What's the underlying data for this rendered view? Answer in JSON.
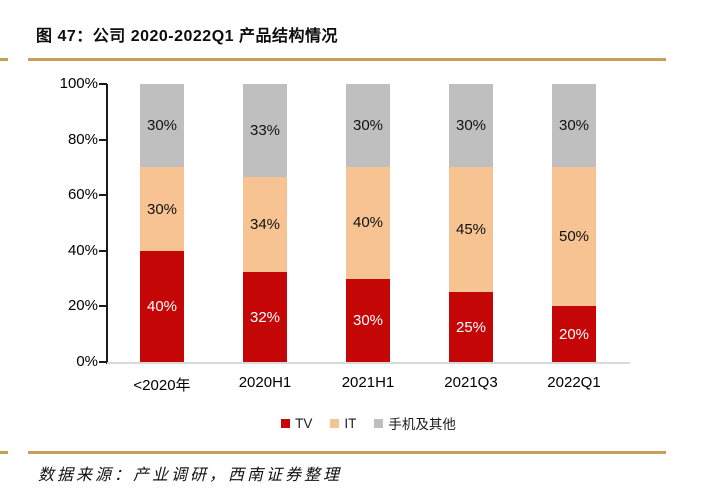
{
  "figure": {
    "title": "图 47：公司 2020-2022Q1 产品结构情况",
    "source": "数据来源：产业调研，西南证券整理"
  },
  "colors": {
    "tv_red": "#C40606",
    "it_peach": "#F8C392",
    "other_gray": "#BFBFBF",
    "rule_gold": "#C5A058",
    "axis_black": "#1a1a1a",
    "x_axis_gray": "#D9D9D9",
    "label_on_red": "#ffffff",
    "label_on_light": "#111111"
  },
  "chart_data": {
    "type": "bar",
    "subtype": "stacked-percent",
    "title": "公司 2020-2022Q1 产品结构情况",
    "categories": [
      "<2020年",
      "2020H1",
      "2021H1",
      "2021Q3",
      "2022Q1"
    ],
    "series": [
      {
        "name": "TV",
        "color": "#C40606",
        "values": [
          40,
          32,
          30,
          25,
          20
        ],
        "label_color": "#ffffff"
      },
      {
        "name": "IT",
        "color": "#F8C392",
        "values": [
          30,
          34,
          40,
          45,
          50
        ],
        "label_color": "#111111"
      },
      {
        "name": "手机及其他",
        "color": "#BFBFBF",
        "values": [
          30,
          33,
          30,
          30,
          30
        ],
        "label_color": "#111111"
      }
    ],
    "data_label_format": "{value}%",
    "y_ticks": [
      "100%",
      "80%",
      "60%",
      "40%",
      "20%",
      "0%"
    ],
    "ylim": [
      0,
      100
    ],
    "xlabel": "",
    "ylabel": "",
    "grid": false,
    "legend_position": "bottom"
  }
}
